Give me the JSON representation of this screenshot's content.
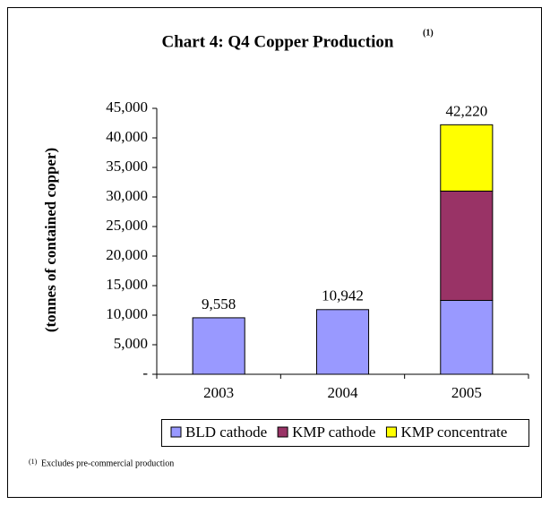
{
  "chart_data": {
    "type": "stacked_bar",
    "title": "Chart 4:  Q4 Copper Production",
    "title_superscript": "(1)",
    "ylabel": "(tonnes of contained copper)",
    "categories": [
      "2003",
      "2004",
      "2005"
    ],
    "series": [
      {
        "name": "BLD cathode",
        "color": "#9999ff",
        "values": [
          9558,
          10942,
          12500
        ]
      },
      {
        "name": "KMP cathode",
        "color": "#993366",
        "values": [
          0,
          0,
          18500
        ]
      },
      {
        "name": "KMP concentrate",
        "color": "#ffff00",
        "values": [
          0,
          0,
          11220
        ]
      }
    ],
    "totals": [
      9558,
      10942,
      42220
    ],
    "total_labels": [
      "9,558",
      "10,942",
      "42,220"
    ],
    "ylim": [
      0,
      45000
    ],
    "yticks": [
      {
        "value": 0,
        "label": "-"
      },
      {
        "value": 5000,
        "label": "5,000"
      },
      {
        "value": 10000,
        "label": "10,000"
      },
      {
        "value": 15000,
        "label": "15,000"
      },
      {
        "value": 20000,
        "label": "20,000"
      },
      {
        "value": 25000,
        "label": "25,000"
      },
      {
        "value": 30000,
        "label": "30,000"
      },
      {
        "value": 35000,
        "label": "35,000"
      },
      {
        "value": 40000,
        "label": "40,000"
      },
      {
        "value": 45000,
        "label": "45,000"
      }
    ],
    "grid": false,
    "legend": "bottom",
    "footnote_marker": "(1)",
    "footnote": "Excludes pre-commercial production"
  }
}
